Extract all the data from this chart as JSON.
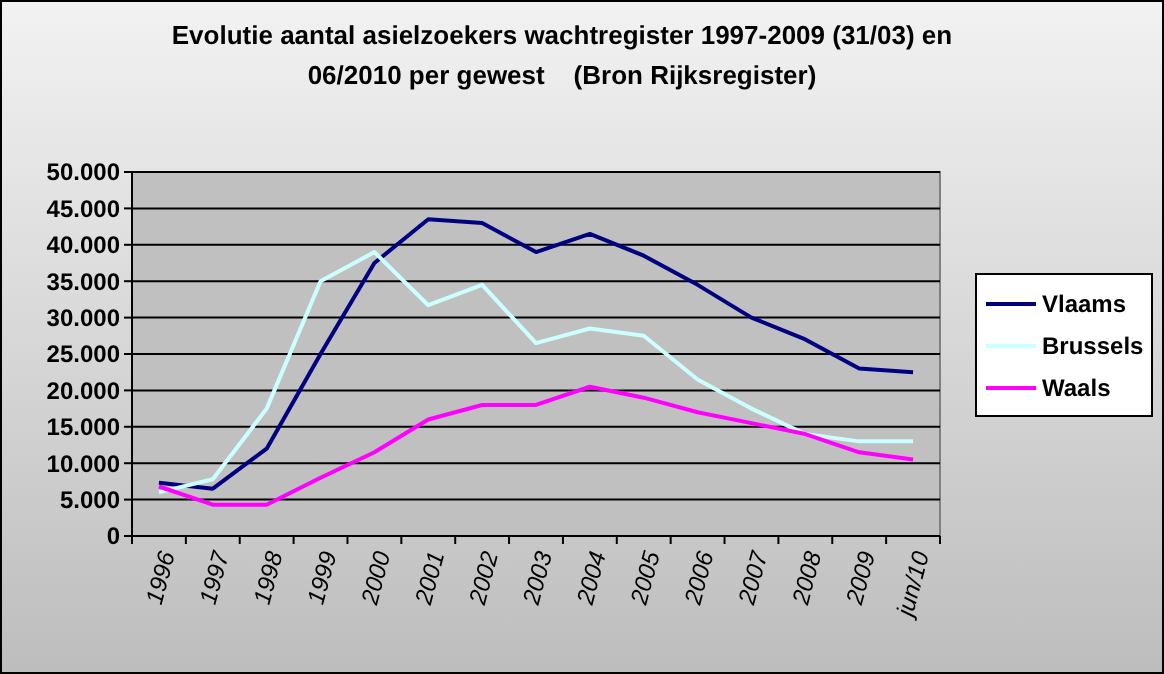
{
  "chart_data": {
    "type": "line",
    "title": "Evolutie aantal asielzoekers wachtregister 1997-2009 (31/03) en 06/2010 per gewest    (Bron Rijksregister)",
    "categories": [
      "1996",
      "1997",
      "1998",
      "1999",
      "2000",
      "2001",
      "2002",
      "2003",
      "2004",
      "2005",
      "2006",
      "2007",
      "2008",
      "2009",
      "jun/10"
    ],
    "series": [
      {
        "name": "Vlaams",
        "color": "#000080",
        "values": [
          7300,
          6500,
          12000,
          25000,
          37500,
          43500,
          43000,
          39000,
          41500,
          38500,
          34500,
          30000,
          27000,
          23000,
          22500
        ]
      },
      {
        "name": "Brussels",
        "color": "#ccffff",
        "values": [
          6000,
          7800,
          17500,
          35000,
          39000,
          31700,
          34500,
          26500,
          28500,
          27500,
          21500,
          17500,
          14000,
          13000,
          13000
        ]
      },
      {
        "name": "Waals",
        "color": "#ff00ff",
        "values": [
          6800,
          4300,
          4300,
          8000,
          11500,
          16000,
          18000,
          18000,
          20500,
          19000,
          17000,
          15500,
          14000,
          11500,
          10500
        ]
      }
    ],
    "ylim": [
      0,
      50000
    ],
    "yticks": [
      0,
      {
        "value": 5000,
        "label": "5.000"
      },
      {
        "value": 10000,
        "label": "10.000"
      },
      {
        "value": 15000,
        "label": "15.000"
      },
      {
        "value": 20000,
        "label": "20.000"
      },
      {
        "value": 25000,
        "label": "25.000"
      },
      {
        "value": 30000,
        "label": "30.000"
      },
      {
        "value": 35000,
        "label": "35.000"
      },
      {
        "value": 40000,
        "label": "40.000"
      },
      {
        "value": 45000,
        "label": "45.000"
      },
      {
        "value": 50000,
        "label": "50.000"
      }
    ],
    "grid": "y",
    "legend": "right",
    "marker": "none",
    "line_style": "solid"
  }
}
